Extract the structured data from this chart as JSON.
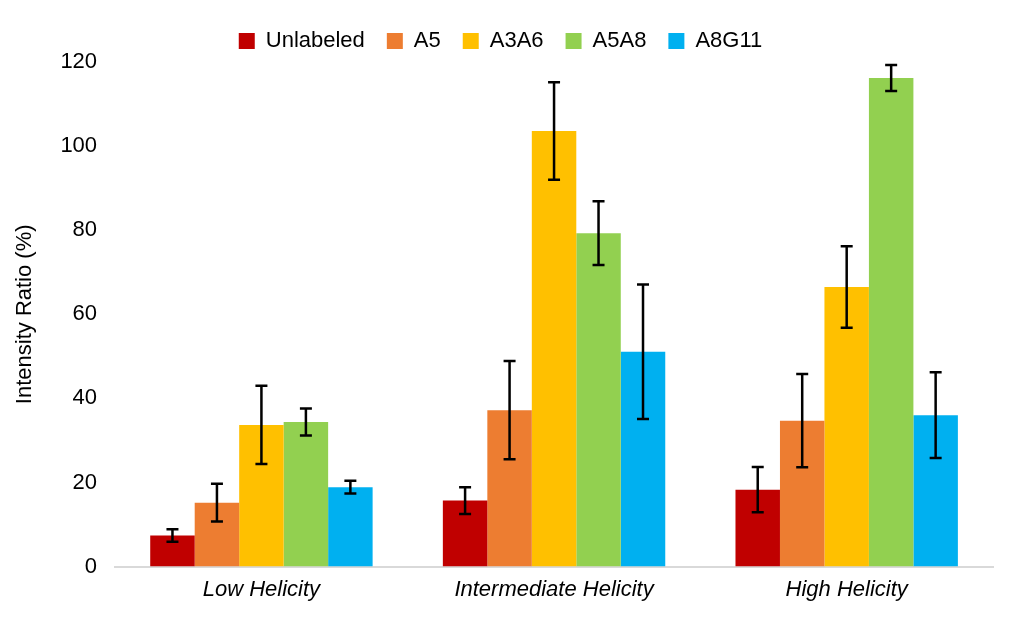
{
  "chart_data": {
    "type": "bar",
    "ylabel": "Intensity Ratio (%)",
    "categories": [
      "Low Helicity",
      "Intermediate Helicity",
      "High Helicity"
    ],
    "series": [
      {
        "name": "Unlabeled",
        "color": "#c00000",
        "values": [
          7.4,
          15.7,
          18.3
        ],
        "errors": [
          1.5,
          3.2,
          5.4
        ]
      },
      {
        "name": "A5",
        "color": "#ed7d31",
        "values": [
          15.2,
          37.2,
          34.7
        ],
        "errors": [
          4.5,
          11.7,
          11.1
        ]
      },
      {
        "name": "A3A6",
        "color": "#ffc000",
        "values": [
          33.7,
          103.6,
          66.5
        ],
        "errors": [
          9.3,
          11.6,
          9.7
        ]
      },
      {
        "name": "A5A8",
        "color": "#92d050",
        "values": [
          34.4,
          79.3,
          116.2
        ],
        "errors": [
          3.2,
          7.6,
          3.1
        ]
      },
      {
        "name": "A8G11",
        "color": "#00b0f0",
        "values": [
          18.9,
          51.1,
          36
        ],
        "errors": [
          1.5,
          16,
          10.2
        ]
      }
    ],
    "ylim": [
      0,
      120
    ],
    "yticks": [
      0,
      20,
      40,
      60,
      80,
      100,
      120
    ],
    "grid": false,
    "legend": "top"
  }
}
